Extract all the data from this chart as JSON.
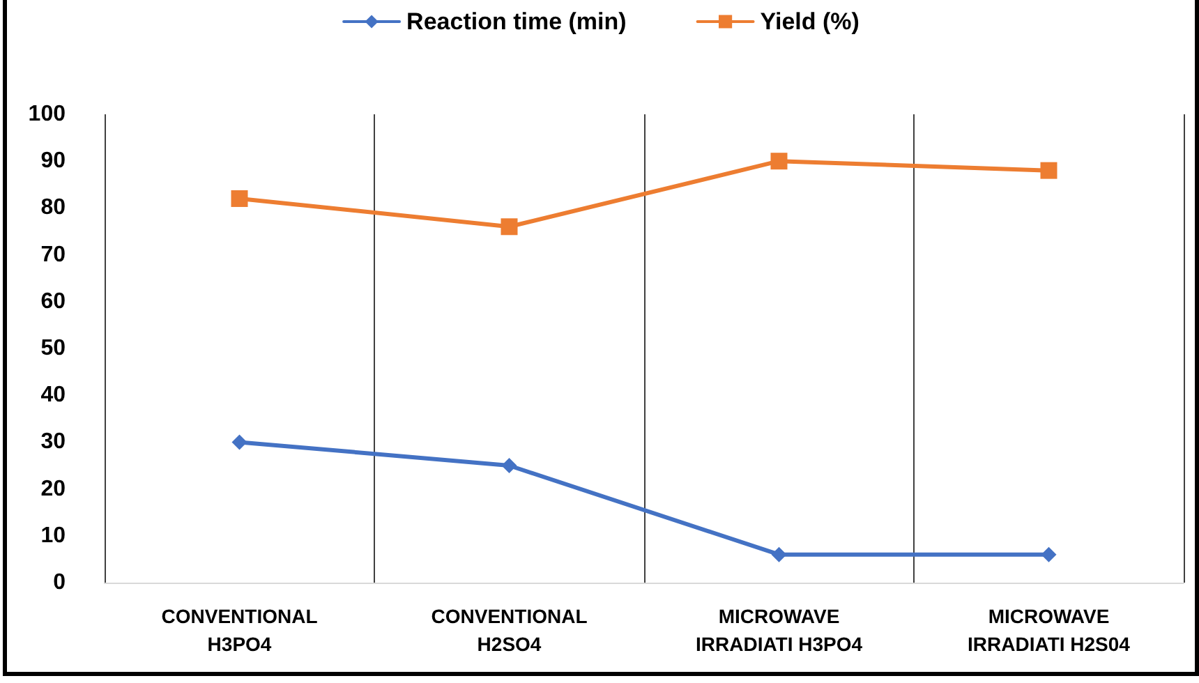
{
  "chart_data": {
    "type": "line",
    "categories": [
      "CONVENTIONAL\nH3PO4",
      "CONVENTIONAL\nH2SO4",
      "MICROWAVE\nIRRADIATI H3PO4",
      "MICROWAVE\nIRRADIATI H2S04"
    ],
    "series": [
      {
        "name": "Reaction time (min)",
        "color": "#4472c4",
        "marker": "diamond",
        "values": [
          30,
          25,
          6,
          6
        ]
      },
      {
        "name": "Yield (%)",
        "color": "#ed7d31",
        "marker": "square",
        "values": [
          82,
          76,
          90,
          88
        ]
      }
    ],
    "ylim": [
      0,
      100
    ],
    "yticks": [
      0,
      10,
      20,
      30,
      40,
      50,
      60,
      70,
      80,
      90,
      100
    ],
    "grid": "x",
    "legend": "top",
    "line_style": "solid"
  }
}
